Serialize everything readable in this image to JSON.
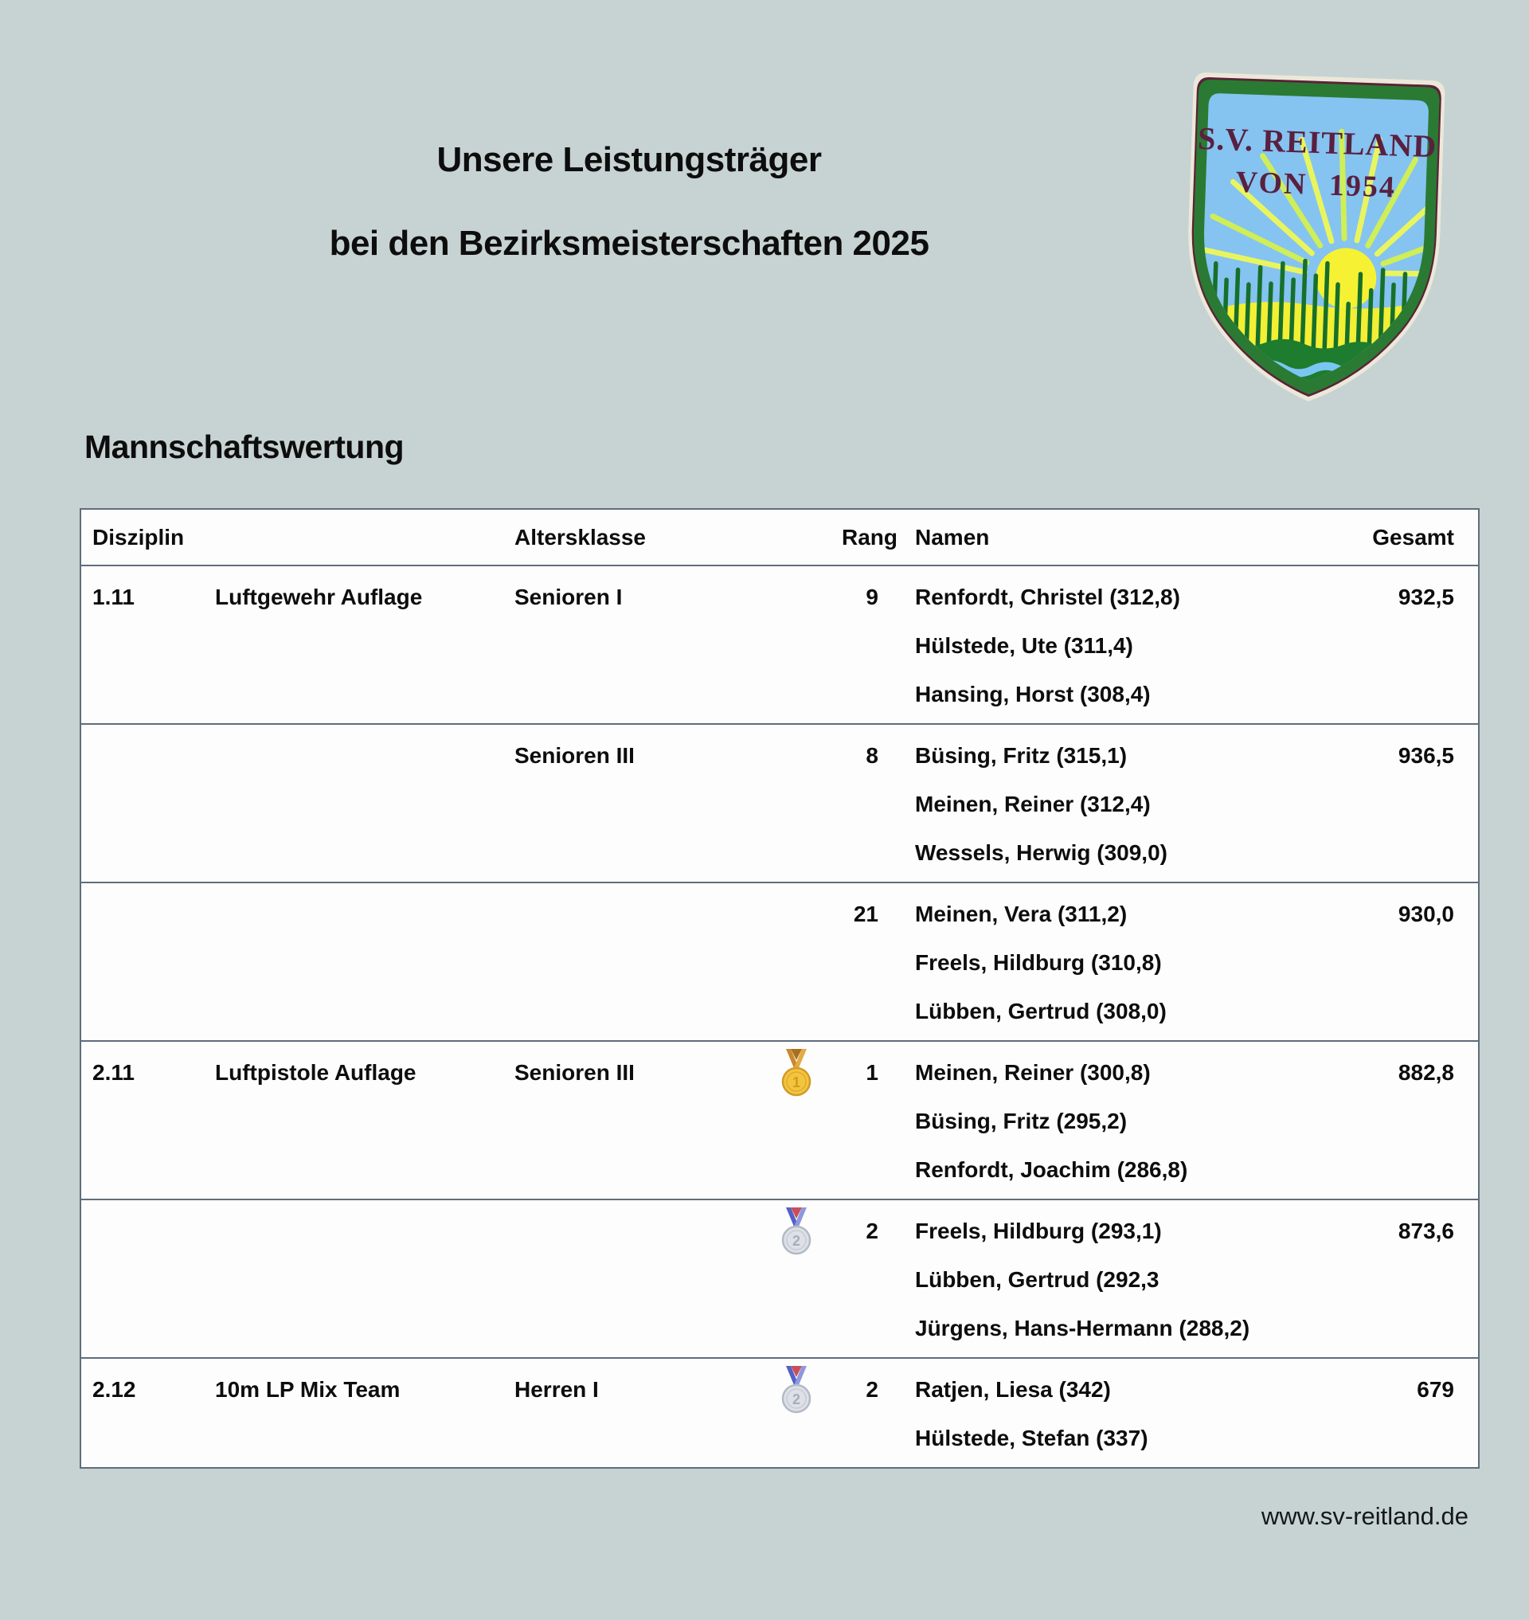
{
  "header": {
    "title_line1": "Unsere Leistungsträger",
    "title_line2": "bei den Bezirksmeisterschaften 2025"
  },
  "badge": {
    "line1": "S.V. REITLAND",
    "line2": "VON 1954"
  },
  "section": {
    "heading": "Mannschaftswertung"
  },
  "table": {
    "columns": [
      "Disziplin",
      "Altersklasse",
      "Rang",
      "Namen",
      "Gesamt"
    ],
    "rows": [
      {
        "discipline_no": "1.11",
        "discipline": "Luftgewehr Auflage",
        "age_class": "Senioren I",
        "medal": "",
        "rank": "9",
        "names": [
          "Renfordt, Christel (312,8)",
          "Hülstede, Ute (311,4)",
          "Hansing, Horst (308,4)"
        ],
        "total": "932,5"
      },
      {
        "discipline_no": "",
        "discipline": "",
        "age_class": "Senioren III",
        "medal": "",
        "rank": "8",
        "names": [
          "Büsing, Fritz (315,1)",
          "Meinen, Reiner (312,4)",
          "Wessels, Herwig (309,0)"
        ],
        "total": "936,5"
      },
      {
        "discipline_no": "",
        "discipline": "",
        "age_class": "",
        "medal": "",
        "rank": "21",
        "names": [
          "Meinen, Vera (311,2)",
          "Freels, Hildburg (310,8)",
          "Lübben, Gertrud (308,0)"
        ],
        "total": "930,0"
      },
      {
        "discipline_no": "2.11",
        "discipline": "Luftpistole Auflage",
        "age_class": "Senioren III",
        "medal": "gold",
        "rank": "1",
        "names": [
          "Meinen, Reiner (300,8)",
          "Büsing, Fritz (295,2)",
          "Renfordt, Joachim (286,8)"
        ],
        "total": "882,8"
      },
      {
        "discipline_no": "",
        "discipline": "",
        "age_class": "",
        "medal": "silver",
        "rank": "2",
        "names": [
          "Freels, Hildburg (293,1)",
          "Lübben, Gertrud (292,3",
          "Jürgens, Hans-Hermann (288,2)"
        ],
        "total": "873,6"
      },
      {
        "discipline_no": "2.12",
        "discipline": "10m LP Mix Team",
        "age_class": "Herren I",
        "medal": "silver",
        "rank": "2",
        "names": [
          "Ratjen, Liesa (342)",
          "Hülstede, Stefan (337)"
        ],
        "total": "679"
      }
    ]
  },
  "footer": {
    "website": "www.sv-reitland.de"
  },
  "colors": {
    "page_background": "#c7d3d2",
    "table_background": "#fdfdfd",
    "table_border": "#5f6d7d",
    "text": "#0d0d0d",
    "medal_gold": "#f3c53f",
    "medal_silver": "#dde1e7",
    "badge_green": "#2a7a33",
    "badge_sky": "#85c3f1",
    "badge_sun": "#f6f233",
    "badge_text": "#5a2040",
    "badge_cream": "#ece8d9"
  }
}
